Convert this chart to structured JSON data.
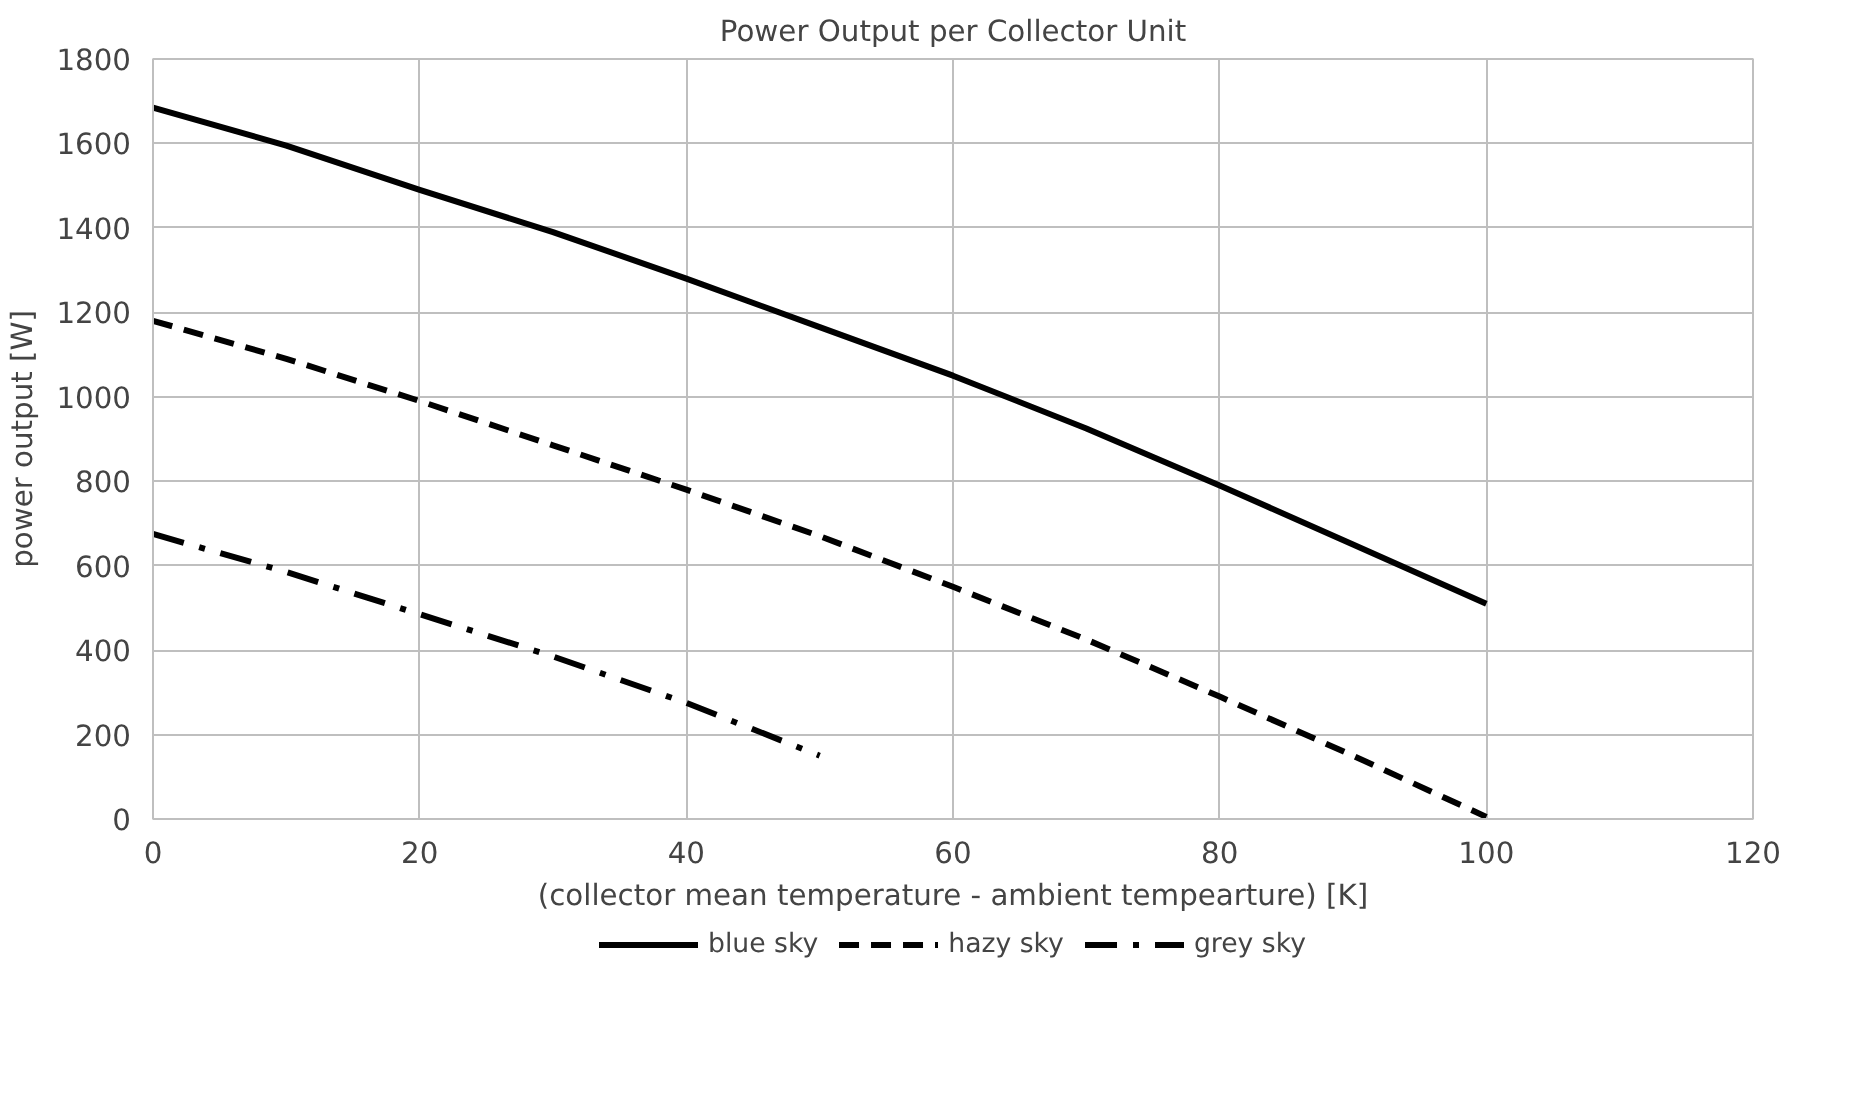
{
  "chart_data": {
    "type": "line",
    "title": "Power Output per Collector Unit",
    "xlabel": "(collector mean temperature - ambient tempearture) [K]",
    "ylabel": "power output [W]",
    "xlim": [
      0,
      120
    ],
    "xticks": [
      0,
      20,
      40,
      60,
      80,
      100,
      120
    ],
    "ylim": [
      0,
      1800
    ],
    "yticks": [
      0,
      200,
      400,
      600,
      800,
      1000,
      1200,
      1400,
      1600,
      1800
    ],
    "grid": true,
    "legend": "bottom",
    "marker": "none",
    "series": [
      {
        "name": "blue sky",
        "color": "#000000",
        "line_style": "solid",
        "x": [
          0,
          10,
          20,
          30,
          40,
          50,
          60,
          70,
          80,
          90,
          100
        ],
        "values": [
          1685,
          1595,
          1490,
          1390,
          1280,
          1165,
          1050,
          925,
          790,
          650,
          510
        ]
      },
      {
        "name": "hazy sky",
        "color": "#000000",
        "line_style": "dashed",
        "x": [
          0,
          10,
          20,
          30,
          40,
          50,
          60,
          70,
          80,
          90,
          100
        ],
        "values": [
          1180,
          1090,
          990,
          885,
          780,
          670,
          550,
          425,
          290,
          150,
          5
        ]
      },
      {
        "name": "grey sky",
        "color": "#000000",
        "line_style": "dashdot",
        "x": [
          0,
          10,
          20,
          30,
          40,
          50
        ],
        "values": [
          675,
          585,
          485,
          385,
          275,
          150
        ]
      }
    ]
  }
}
